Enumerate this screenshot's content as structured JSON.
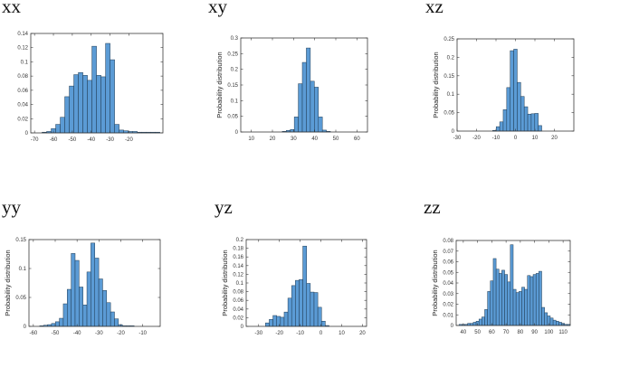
{
  "figure": {
    "bar_color": "#5b9bd5",
    "edge_color": "#1f3a52"
  },
  "chart_data": [
    {
      "type": "bar",
      "panel_title": "xx",
      "ylabel": "",
      "xlim": [
        -72,
        -2
      ],
      "ylim": [
        0,
        0.14
      ],
      "xticks": [
        -70,
        -60,
        -50,
        -40,
        -30,
        -20
      ],
      "yticks": [
        0,
        0.02,
        0.04,
        0.06,
        0.08,
        0.1,
        0.12,
        0.14
      ],
      "bin_width": 2.4,
      "x": [
        -64.8,
        -62.4,
        -60.0,
        -57.6,
        -55.2,
        -52.8,
        -50.4,
        -48.0,
        -45.6,
        -43.2,
        -40.8,
        -38.4,
        -36.0,
        -33.6,
        -31.2,
        -28.8,
        -26.4,
        -24.0,
        -21.6,
        -19.2,
        -16.8,
        -14.4,
        -12.0,
        -9.6,
        -7.2,
        -4.8
      ],
      "values": [
        0.001,
        0.002,
        0.006,
        0.012,
        0.022,
        0.051,
        0.066,
        0.082,
        0.085,
        0.081,
        0.074,
        0.122,
        0.081,
        0.079,
        0.126,
        0.103,
        0.012,
        0.004,
        0.003,
        0.002,
        0.002,
        0.001,
        0.001,
        0.001,
        0.001,
        0.001
      ]
    },
    {
      "type": "bar",
      "panel_title": "xy",
      "ylabel": "Probability distribution",
      "xlim": [
        5,
        65
      ],
      "ylim": [
        0,
        0.3
      ],
      "xticks": [
        10,
        20,
        30,
        40,
        50,
        60
      ],
      "yticks": [
        0,
        0.05,
        0.1,
        0.15,
        0.2,
        0.25,
        0.3
      ],
      "bin_width": 1.9,
      "x": [
        25.6,
        27.5,
        29.4,
        31.3,
        33.2,
        35.1,
        37.0,
        38.9,
        40.8,
        42.7,
        44.6,
        46.5
      ],
      "values": [
        0.002,
        0.005,
        0.008,
        0.048,
        0.154,
        0.222,
        0.268,
        0.162,
        0.143,
        0.048,
        0.006,
        0.002
      ]
    },
    {
      "type": "bar",
      "panel_title": "xz",
      "ylabel": "Probability distribution",
      "xlim": [
        -30,
        30
      ],
      "ylim": [
        0,
        0.25
      ],
      "xticks": [
        -30,
        -20,
        -10,
        0,
        10,
        20
      ],
      "yticks": [
        0,
        0.05,
        0.1,
        0.15,
        0.2,
        0.25
      ],
      "bin_width": 1.8,
      "x": [
        -10.8,
        -9.0,
        -7.2,
        -5.4,
        -3.6,
        -1.8,
        0.0,
        1.8,
        3.6,
        5.4,
        7.2,
        9.0,
        10.8,
        12.6
      ],
      "values": [
        0.002,
        0.012,
        0.025,
        0.058,
        0.118,
        0.218,
        0.222,
        0.132,
        0.094,
        0.066,
        0.046,
        0.047,
        0.048,
        0.015
      ]
    },
    {
      "type": "bar",
      "panel_title": "yy",
      "ylabel": "Probability distribution",
      "xlim": [
        -62,
        -2
      ],
      "ylim": [
        0,
        0.15
      ],
      "xticks": [
        -60,
        -50,
        -40,
        -30,
        -20,
        -10
      ],
      "yticks": [
        0,
        0.05,
        0.1,
        0.15
      ],
      "bin_width": 1.8,
      "x": [
        -56.2,
        -54.4,
        -52.6,
        -50.8,
        -49.0,
        -47.2,
        -45.4,
        -43.6,
        -41.8,
        -40.0,
        -38.2,
        -36.4,
        -34.6,
        -32.8,
        -31.0,
        -29.2,
        -27.4,
        -25.6,
        -23.8,
        -22.0,
        -20.2,
        -18.4,
        -16.6,
        -14.8
      ],
      "values": [
        0.001,
        0.002,
        0.003,
        0.005,
        0.008,
        0.014,
        0.039,
        0.064,
        0.126,
        0.114,
        0.068,
        0.037,
        0.094,
        0.144,
        0.118,
        0.082,
        0.062,
        0.041,
        0.025,
        0.013,
        0.003,
        0.001,
        0.001,
        0.001
      ]
    },
    {
      "type": "bar",
      "panel_title": "yz",
      "ylabel": "Probability distribution",
      "xlim": [
        -36,
        22
      ],
      "ylim": [
        0,
        0.2
      ],
      "xticks": [
        -30,
        -20,
        -10,
        0,
        10,
        20
      ],
      "yticks": [
        0,
        0.02,
        0.04,
        0.06,
        0.08,
        0.1,
        0.12,
        0.14,
        0.16,
        0.18,
        0.2
      ],
      "bin_width": 1.8,
      "x": [
        -25.8,
        -24.0,
        -22.2,
        -20.4,
        -18.6,
        -16.8,
        -15.0,
        -13.2,
        -11.4,
        -9.6,
        -7.8,
        -6.0,
        -4.2,
        -2.4,
        -0.6,
        1.2,
        3.0
      ],
      "values": [
        0.008,
        0.016,
        0.025,
        0.023,
        0.021,
        0.033,
        0.065,
        0.094,
        0.106,
        0.108,
        0.185,
        0.099,
        0.079,
        0.078,
        0.044,
        0.012,
        0.002
      ]
    },
    {
      "type": "bar",
      "panel_title": "zz",
      "ylabel": "Probability distribution",
      "xlim": [
        35,
        115
      ],
      "ylim": [
        0,
        0.08
      ],
      "xticks": [
        40,
        50,
        60,
        70,
        80,
        90,
        100,
        110
      ],
      "yticks": [
        0,
        0.01,
        0.02,
        0.03,
        0.04,
        0.05,
        0.06,
        0.07,
        0.08
      ],
      "bin_width": 2.0,
      "x": [
        38,
        40,
        42,
        44,
        46,
        48,
        50,
        52,
        54,
        56,
        58,
        60,
        62,
        64,
        66,
        68,
        70,
        72,
        74,
        76,
        78,
        80,
        82,
        84,
        86,
        88,
        90,
        92,
        94,
        96,
        98,
        100,
        102,
        104,
        106,
        108,
        110,
        112,
        114
      ],
      "values": [
        0.001,
        0.001,
        0.001,
        0.002,
        0.002,
        0.003,
        0.004,
        0.006,
        0.008,
        0.015,
        0.032,
        0.042,
        0.063,
        0.053,
        0.049,
        0.052,
        0.048,
        0.041,
        0.076,
        0.034,
        0.031,
        0.032,
        0.036,
        0.034,
        0.047,
        0.046,
        0.048,
        0.049,
        0.051,
        0.017,
        0.012,
        0.009,
        0.007,
        0.005,
        0.004,
        0.003,
        0.002,
        0.001,
        0.001
      ]
    }
  ]
}
